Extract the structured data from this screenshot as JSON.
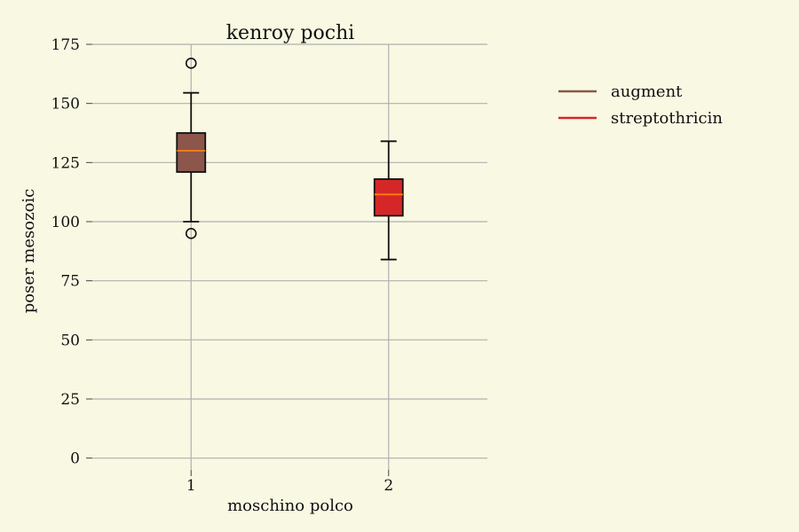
{
  "chart_data": {
    "type": "box",
    "title": "kenroy pochi",
    "xlabel": "moschino polco",
    "ylabel": "poser mesozoic",
    "categories": [
      "1",
      "2"
    ],
    "ylim": [
      -5,
      175
    ],
    "yticks": [
      0,
      25,
      50,
      75,
      100,
      125,
      150,
      175
    ],
    "grid": true,
    "legend_position": "right",
    "series": [
      {
        "name": "augment",
        "color": "#8c564b",
        "median_color": "#ff7f0e",
        "whisker_low": 100,
        "q1": 121,
        "median": 130,
        "q3": 137.5,
        "whisker_high": 154.5,
        "outliers": [
          167,
          95
        ]
      },
      {
        "name": "streptothricin",
        "color": "#d62728",
        "median_color": "#ff7f0e",
        "whisker_low": 84,
        "q1": 102.5,
        "median": 111.5,
        "q3": 118,
        "whisker_high": 134,
        "outliers": []
      }
    ]
  }
}
